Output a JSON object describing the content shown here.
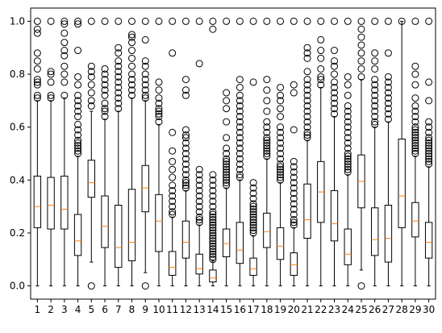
{
  "chart_data": {
    "type": "box",
    "title": "",
    "xlabel": "",
    "ylabel": "",
    "ylim": [
      -0.05,
      1.05
    ],
    "yticks": [
      0.0,
      0.2,
      0.4,
      0.6,
      0.8,
      1.0
    ],
    "ytick_labels": [
      "0.0",
      "0.2",
      "0.4",
      "0.6",
      "0.8",
      "1.0"
    ],
    "categories": [
      "1",
      "2",
      "3",
      "4",
      "5",
      "6",
      "7",
      "8",
      "9",
      "10",
      "11",
      "12",
      "13",
      "14",
      "15",
      "16",
      "17",
      "18",
      "19",
      "20",
      "21",
      "22",
      "23",
      "24",
      "25",
      "26",
      "27",
      "28",
      "29",
      "30"
    ],
    "grid": false,
    "colors": {
      "box": "#000000",
      "median": "#ff7f0e"
    },
    "boxes": [
      {
        "min": 0.0,
        "q1": 0.22,
        "median": 0.3,
        "q3": 0.415,
        "max": 0.7,
        "outliers": [
          0.71,
          0.72,
          0.76,
          0.77,
          0.78,
          0.82,
          0.85,
          0.88,
          0.955,
          0.97,
          1.0
        ]
      },
      {
        "min": 0.0,
        "q1": 0.215,
        "median": 0.305,
        "q3": 0.41,
        "max": 0.7,
        "outliers": [
          0.71,
          0.72,
          0.77,
          0.8,
          0.81,
          1.0
        ]
      },
      {
        "min": 0.0,
        "q1": 0.215,
        "median": 0.29,
        "q3": 0.415,
        "max": 0.71,
        "outliers": [
          0.72,
          0.77,
          0.8,
          0.83,
          0.87,
          0.89,
          0.92,
          0.955,
          0.99,
          1.0
        ]
      },
      {
        "min": 0.0,
        "q1": 0.115,
        "median": 0.17,
        "q3": 0.27,
        "max": 0.49,
        "outliers": [
          0.5,
          0.51,
          0.52,
          0.53,
          0.54,
          0.55,
          0.57,
          0.59,
          0.61,
          0.64,
          0.66,
          0.68,
          0.7,
          0.72,
          0.76,
          0.79,
          0.89,
          0.99,
          1.0
        ]
      },
      {
        "min": 0.09,
        "q1": 0.335,
        "median": 0.39,
        "q3": 0.475,
        "max": 0.66,
        "outliers": [
          0.0,
          0.68,
          0.7,
          0.73,
          0.76,
          0.79,
          0.81,
          0.83,
          1.0
        ]
      },
      {
        "min": 0.0,
        "q1": 0.145,
        "median": 0.225,
        "q3": 0.34,
        "max": 0.63,
        "outliers": [
          0.64,
          0.66,
          0.67,
          0.69,
          0.72,
          0.74,
          0.76,
          0.78,
          0.8,
          0.82,
          1.0
        ]
      },
      {
        "min": 0.0,
        "q1": 0.07,
        "median": 0.145,
        "q3": 0.305,
        "max": 0.66,
        "outliers": [
          0.67,
          0.69,
          0.71,
          0.73,
          0.75,
          0.77,
          0.79,
          0.81,
          0.83,
          0.85,
          0.88,
          0.9,
          1.0
        ]
      },
      {
        "min": 0.0,
        "q1": 0.095,
        "median": 0.165,
        "q3": 0.365,
        "max": 0.71,
        "outliers": [
          0.72,
          0.74,
          0.76,
          0.78,
          0.8,
          0.83,
          0.86,
          0.89,
          0.92,
          0.94,
          0.95,
          1.0
        ]
      },
      {
        "min": 0.05,
        "q1": 0.28,
        "median": 0.37,
        "q3": 0.455,
        "max": 0.7,
        "outliers": [
          0.0,
          0.71,
          0.72,
          0.74,
          0.76,
          0.78,
          0.8,
          0.83,
          0.85,
          0.93,
          1.0
        ]
      },
      {
        "min": 0.0,
        "q1": 0.13,
        "median": 0.245,
        "q3": 0.345,
        "max": 0.61,
        "outliers": [
          0.62,
          0.64,
          0.65,
          0.66,
          0.67,
          0.69,
          0.71,
          0.74,
          0.77,
          1.0
        ]
      },
      {
        "min": 0.0,
        "q1": 0.04,
        "median": 0.07,
        "q3": 0.13,
        "max": 0.26,
        "outliers": [
          0.27,
          0.28,
          0.3,
          0.32,
          0.34,
          0.36,
          0.38,
          0.41,
          0.44,
          0.47,
          0.51,
          0.58,
          0.88,
          1.0
        ]
      },
      {
        "min": 0.0,
        "q1": 0.105,
        "median": 0.165,
        "q3": 0.245,
        "max": 0.36,
        "outliers": [
          0.37,
          0.38,
          0.39,
          0.4,
          0.42,
          0.44,
          0.46,
          0.48,
          0.5,
          0.52,
          0.54,
          0.56,
          0.57,
          0.59,
          0.72,
          0.74,
          0.78,
          1.0
        ]
      },
      {
        "min": 0.0,
        "q1": 0.045,
        "median": 0.065,
        "q3": 0.12,
        "max": 0.23,
        "outliers": [
          0.24,
          0.25,
          0.26,
          0.28,
          0.3,
          0.32,
          0.34,
          0.36,
          0.38,
          0.4,
          0.42,
          0.44,
          0.84,
          1.0
        ]
      },
      {
        "min": 0.0,
        "q1": 0.015,
        "median": 0.03,
        "q3": 0.06,
        "max": 0.095,
        "outliers": [
          0.1,
          0.11,
          0.12,
          0.13,
          0.14,
          0.15,
          0.16,
          0.17,
          0.18,
          0.19,
          0.2,
          0.21,
          0.22,
          0.23,
          0.24,
          0.25,
          0.26,
          0.27,
          0.28,
          0.3,
          0.32,
          0.34,
          0.36,
          0.38,
          0.4,
          0.42,
          0.97,
          1.0
        ]
      },
      {
        "min": 0.0,
        "q1": 0.11,
        "median": 0.16,
        "q3": 0.215,
        "max": 0.37,
        "outliers": [
          0.38,
          0.39,
          0.4,
          0.41,
          0.42,
          0.43,
          0.44,
          0.45,
          0.46,
          0.47,
          0.48,
          0.5,
          0.52,
          0.56,
          0.62,
          0.67,
          0.7,
          0.73,
          1.0
        ]
      },
      {
        "min": 0.0,
        "q1": 0.085,
        "median": 0.135,
        "q3": 0.24,
        "max": 0.4,
        "outliers": [
          0.41,
          0.42,
          0.44,
          0.46,
          0.48,
          0.5,
          0.52,
          0.54,
          0.56,
          0.58,
          0.6,
          0.62,
          0.64,
          0.66,
          0.68,
          0.7,
          0.72,
          0.75,
          0.78,
          1.0
        ]
      },
      {
        "min": 0.0,
        "q1": 0.04,
        "median": 0.065,
        "q3": 0.105,
        "max": 0.19,
        "outliers": [
          0.2,
          0.21,
          0.22,
          0.23,
          0.24,
          0.25,
          0.26,
          0.27,
          0.28,
          0.29,
          0.3,
          0.31,
          0.33,
          0.35,
          0.37,
          0.39,
          0.77,
          1.0
        ]
      },
      {
        "min": 0.0,
        "q1": 0.145,
        "median": 0.205,
        "q3": 0.275,
        "max": 0.48,
        "outliers": [
          0.49,
          0.5,
          0.51,
          0.52,
          0.53,
          0.54,
          0.55,
          0.56,
          0.58,
          0.6,
          0.62,
          0.66,
          0.7,
          0.74,
          0.78,
          1.0
        ]
      },
      {
        "min": 0.0,
        "q1": 0.1,
        "median": 0.15,
        "q3": 0.22,
        "max": 0.39,
        "outliers": [
          0.4,
          0.41,
          0.42,
          0.43,
          0.44,
          0.45,
          0.46,
          0.48,
          0.5,
          0.52,
          0.54,
          0.56,
          0.58,
          0.6,
          0.64,
          0.67,
          0.7,
          0.72,
          0.75,
          1.0
        ]
      },
      {
        "min": 0.0,
        "q1": 0.04,
        "median": 0.08,
        "q3": 0.125,
        "max": 0.22,
        "outliers": [
          0.23,
          0.24,
          0.25,
          0.27,
          0.29,
          0.31,
          0.33,
          0.35,
          0.37,
          0.39,
          0.41,
          0.43,
          0.45,
          0.47,
          0.59,
          0.73,
          0.76,
          1.0
        ]
      },
      {
        "min": 0.0,
        "q1": 0.18,
        "median": 0.25,
        "q3": 0.385,
        "max": 0.55,
        "outliers": [
          0.56,
          0.57,
          0.58,
          0.6,
          0.62,
          0.64,
          0.66,
          0.68,
          0.7,
          0.72,
          0.74,
          0.76,
          0.78,
          0.81,
          0.86,
          0.88,
          0.9,
          1.0
        ]
      },
      {
        "min": 0.0,
        "q1": 0.24,
        "median": 0.355,
        "q3": 0.47,
        "max": 0.75,
        "outliers": [
          0.76,
          0.78,
          0.79,
          0.82,
          0.86,
          0.89,
          0.93,
          1.0
        ]
      },
      {
        "min": 0.0,
        "q1": 0.17,
        "median": 0.235,
        "q3": 0.36,
        "max": 0.64,
        "outliers": [
          0.65,
          0.67,
          0.69,
          0.71,
          0.73,
          0.75,
          0.77,
          0.8,
          0.83,
          0.85,
          0.89,
          1.0
        ]
      },
      {
        "min": 0.0,
        "q1": 0.08,
        "median": 0.12,
        "q3": 0.215,
        "max": 0.42,
        "outliers": [
          0.43,
          0.44,
          0.45,
          0.46,
          0.47,
          0.48,
          0.49,
          0.5,
          0.52,
          0.54,
          0.56,
          0.58,
          0.6,
          0.62,
          0.64,
          0.66,
          0.68,
          0.72,
          0.76,
          0.79,
          1.0
        ]
      },
      {
        "min": 0.06,
        "q1": 0.295,
        "median": 0.395,
        "q3": 0.495,
        "max": 0.78,
        "outliers": [
          0.0,
          0.79,
          0.82,
          0.85,
          0.88,
          0.91,
          0.94,
          0.97,
          1.0
        ]
      },
      {
        "min": 0.0,
        "q1": 0.115,
        "median": 0.175,
        "q3": 0.295,
        "max": 0.6,
        "outliers": [
          0.61,
          0.62,
          0.64,
          0.66,
          0.68,
          0.7,
          0.72,
          0.74,
          0.76,
          0.78,
          0.82,
          0.85,
          0.88,
          1.0
        ]
      },
      {
        "min": 0.0,
        "q1": 0.09,
        "median": 0.18,
        "q3": 0.305,
        "max": 0.62,
        "outliers": [
          0.63,
          0.65,
          0.67,
          0.69,
          0.71,
          0.73,
          0.75,
          0.77,
          0.79,
          0.88,
          1.0
        ]
      },
      {
        "min": 0.0,
        "q1": 0.22,
        "median": 0.34,
        "q3": 0.555,
        "max": 1.0,
        "outliers": [
          1.0
        ]
      },
      {
        "min": 0.0,
        "q1": 0.185,
        "median": 0.245,
        "q3": 0.315,
        "max": 0.49,
        "outliers": [
          0.5,
          0.51,
          0.52,
          0.53,
          0.54,
          0.55,
          0.56,
          0.57,
          0.58,
          0.59,
          0.6,
          0.62,
          0.64,
          0.66,
          0.68,
          0.71,
          0.76,
          0.8,
          0.83,
          1.0
        ]
      },
      {
        "min": 0.0,
        "q1": 0.105,
        "median": 0.165,
        "q3": 0.24,
        "max": 0.45,
        "outliers": [
          0.46,
          0.47,
          0.48,
          0.49,
          0.5,
          0.51,
          0.52,
          0.53,
          0.54,
          0.55,
          0.56,
          0.58,
          0.6,
          0.62,
          0.7,
          0.77,
          1.0
        ]
      }
    ]
  }
}
